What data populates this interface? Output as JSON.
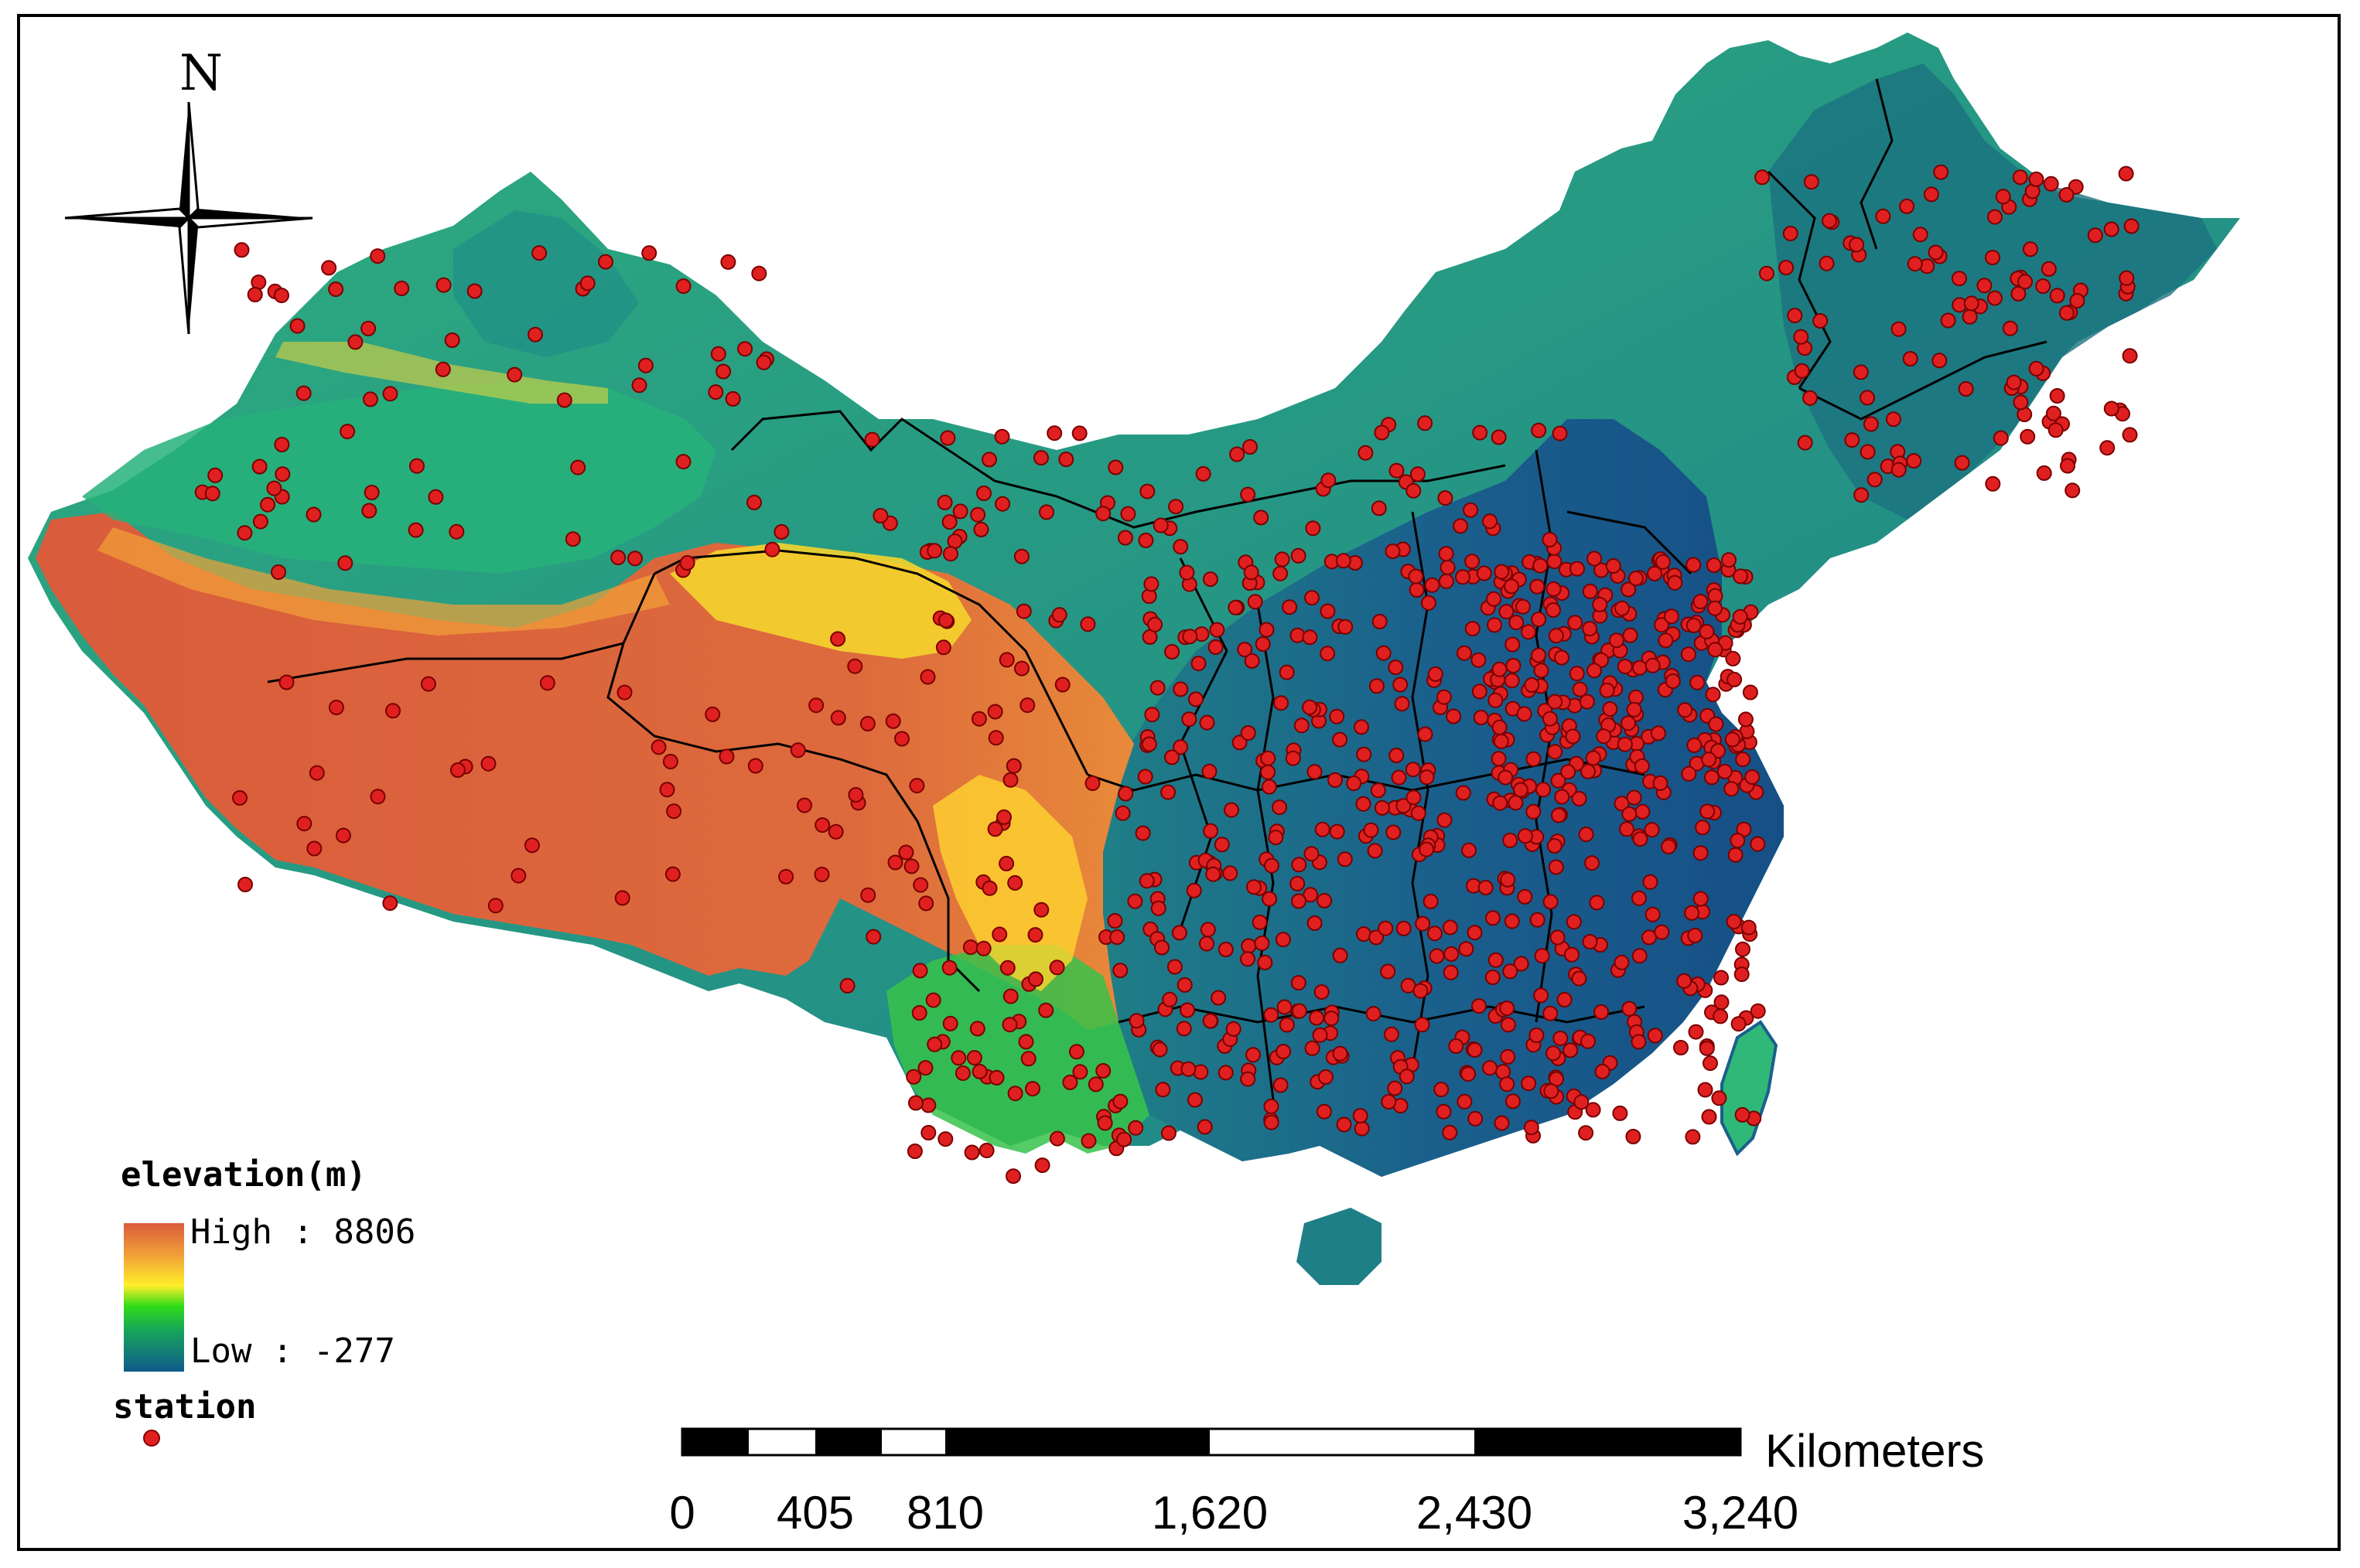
{
  "map": {
    "north_label": "N",
    "legend": {
      "title": "elevation(m)",
      "high_label": "High : 8806",
      "low_label": "Low : -277",
      "station_label": "station",
      "ramp_colors": [
        "#d95c3c",
        "#f2a138",
        "#ffee2a",
        "#2fdc18",
        "#17a65a",
        "#0f5a8c"
      ],
      "station_color": "#e02020"
    },
    "scale_bar": {
      "unit": "Kilometers",
      "ticks": [
        "0",
        "405",
        "810",
        "1,620",
        "2,430",
        "3,240"
      ]
    },
    "colors": {
      "lowland_blue": "#1a5f8c",
      "plain_green": "#2fb878",
      "plateau_orange": "#d95c3c",
      "highland_yellow": "#f4d42c",
      "boundary": "#000000"
    }
  }
}
